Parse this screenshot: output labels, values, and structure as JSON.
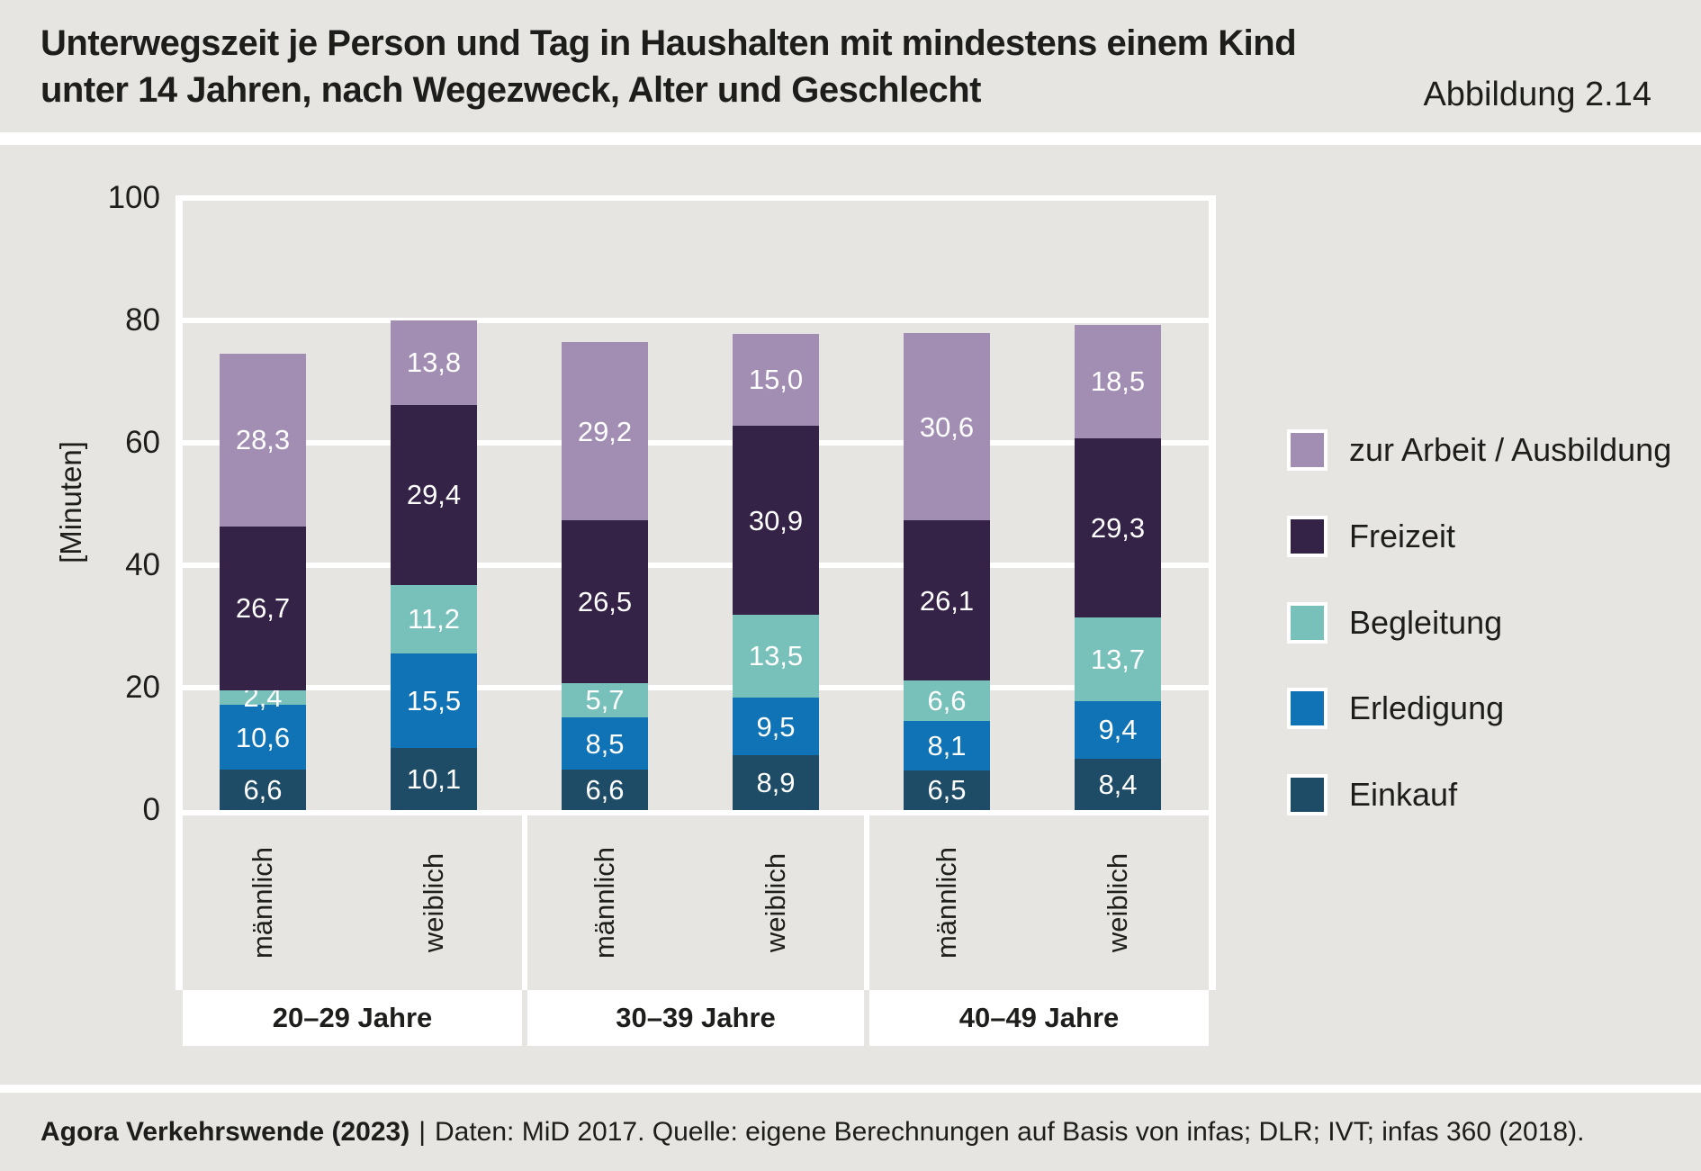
{
  "header": {
    "title_line1": "Unterwegszeit je Person und Tag in Haushalten mit mindestens einem Kind",
    "title_line2": "unter 14 Jahren, nach Wegezweck, Alter und Geschlecht",
    "figure_label": "Abbildung 2.14"
  },
  "chart_data": {
    "type": "bar",
    "stacked": true,
    "title": "Unterwegszeit je Person und Tag in Haushalten mit mindestens einem Kind unter 14 Jahren, nach Wegezweck, Alter und Geschlecht",
    "ylabel": "[Minuten]",
    "ylim": [
      0,
      100
    ],
    "yticks": [
      0,
      20,
      40,
      60,
      80,
      100
    ],
    "grid": true,
    "legend_position": "right",
    "groups": [
      {
        "label": "20–29 Jahre",
        "bars": [
          "männlich",
          "weiblich"
        ]
      },
      {
        "label": "30–39 Jahre",
        "bars": [
          "männlich",
          "weiblich"
        ]
      },
      {
        "label": "40–49 Jahre",
        "bars": [
          "männlich",
          "weiblich"
        ]
      }
    ],
    "series": [
      {
        "name": "Einkauf",
        "color": "#1e4c67",
        "values": [
          6.6,
          10.1,
          6.6,
          8.9,
          6.5,
          8.4
        ],
        "labels": [
          "6,6",
          "10,1",
          "6,6",
          "8,9",
          "6,5",
          "8,4"
        ]
      },
      {
        "name": "Erledigung",
        "color": "#0f73b5",
        "values": [
          10.6,
          15.5,
          8.5,
          9.5,
          8.1,
          9.4
        ],
        "labels": [
          "10,6",
          "15,5",
          "8,5",
          "9,5",
          "8,1",
          "9,4"
        ]
      },
      {
        "name": "Begleitung",
        "color": "#78c0ba",
        "values": [
          2.4,
          11.2,
          5.7,
          13.5,
          6.6,
          13.7
        ],
        "labels": [
          "2,4",
          "11,2",
          "5,7",
          "13,5",
          "6,6",
          "13,7"
        ]
      },
      {
        "name": "Freizeit",
        "color": "#342247",
        "values": [
          26.7,
          29.4,
          26.5,
          30.9,
          26.1,
          29.3
        ],
        "labels": [
          "26,7",
          "29,4",
          "26,5",
          "30,9",
          "26,1",
          "29,3"
        ]
      },
      {
        "name": "zur Arbeit / Ausbildung",
        "color": "#a38eb3",
        "values": [
          28.3,
          13.8,
          29.2,
          15.0,
          30.6,
          18.5
        ],
        "labels": [
          "28,3",
          "13,8",
          "29,2",
          "15,0",
          "30,6",
          "18,5"
        ]
      }
    ]
  },
  "legend": {
    "items": [
      {
        "label": "zur Arbeit / Ausbildung",
        "color": "#a38eb3"
      },
      {
        "label": "Freizeit",
        "color": "#342247"
      },
      {
        "label": "Begleitung",
        "color": "#78c0ba"
      },
      {
        "label": "Erledigung",
        "color": "#0f73b5"
      },
      {
        "label": "Einkauf",
        "color": "#1e4c67"
      }
    ]
  },
  "footer": {
    "source_bold": "Agora Verkehrswende (2023)",
    "separator": "|",
    "source_rest": "Daten: MiD 2017. Quelle: eigene Berechnungen auf Basis von infas; DLR; IVT; infas 360 (2018)."
  },
  "colors": {
    "page_background": "#e6e5e1",
    "gridline": "#ffffff",
    "text": "#1d1d1b",
    "bar_value_text": "#ffffff"
  }
}
